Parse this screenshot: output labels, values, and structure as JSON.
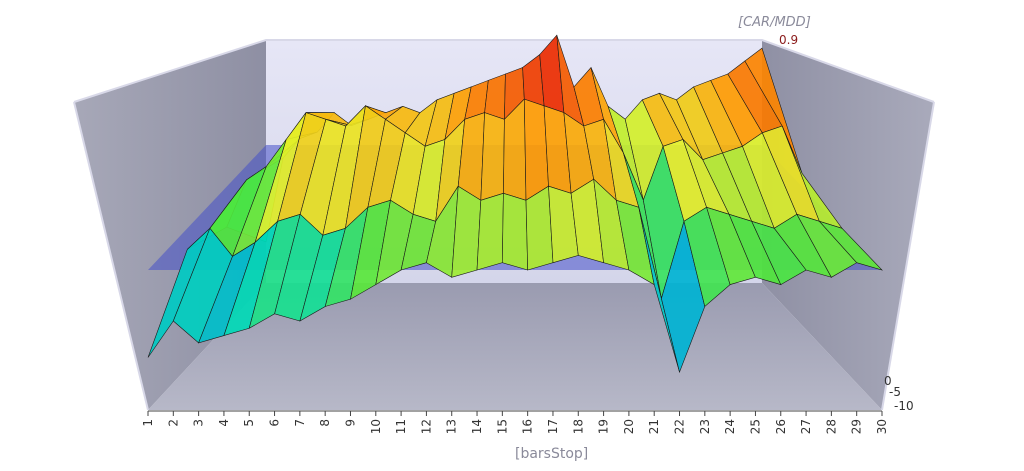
{
  "chart_data": {
    "type": "surface3d",
    "title": "",
    "xlabel": "[barsStop]",
    "zlabel": "[CAR/MDD]",
    "z_tick_visible": "0.9",
    "y_ticks_visible": [
      "0",
      "-5",
      "-10"
    ],
    "x": [
      1,
      2,
      3,
      4,
      5,
      6,
      7,
      8,
      9,
      10,
      11,
      12,
      13,
      14,
      15,
      16,
      17,
      18,
      19,
      20,
      21,
      22,
      23,
      24,
      25,
      26,
      27,
      28,
      29,
      30
    ],
    "x_tick_labels": [
      "1",
      "2",
      "3",
      "4",
      "5",
      "6",
      "7",
      "8",
      "9",
      "10",
      "11",
      "12",
      "13",
      "14",
      "15",
      "16",
      "17",
      "18",
      "19",
      "20",
      "21",
      "22",
      "23",
      "24",
      "25",
      "26",
      "27",
      "28",
      "29",
      "30"
    ],
    "y_rows": 4,
    "z_min": -0.9,
    "z_max": 0.9,
    "reference_plane_z": 0.0,
    "surface_rows": [
      [
        -0.75,
        -0.1,
        0.05,
        0.1,
        0.25,
        0.15,
        0.2,
        0.25,
        0.3,
        0.25,
        0.35,
        0.4,
        0.45,
        0.5,
        0.55,
        0.6,
        0.7,
        0.85,
        0.45,
        0.6,
        0.3,
        0.2,
        0.35,
        0.4,
        0.35,
        0.45,
        0.5,
        0.55,
        0.65,
        0.75
      ],
      [
        -0.3,
        0.05,
        0.15,
        0.35,
        0.55,
        0.5,
        0.45,
        0.6,
        0.5,
        0.4,
        0.3,
        0.35,
        0.5,
        0.55,
        0.5,
        0.65,
        0.6,
        0.55,
        0.45,
        0.5,
        0.25,
        -0.1,
        0.3,
        0.35,
        0.2,
        0.25,
        0.3,
        0.4,
        0.45,
        0.1
      ],
      [
        -0.15,
        0.0,
        -0.2,
        -0.1,
        0.05,
        0.1,
        -0.05,
        0.0,
        0.15,
        0.2,
        0.1,
        0.05,
        0.3,
        0.2,
        0.25,
        0.2,
        0.3,
        0.25,
        0.35,
        0.2,
        0.15,
        -0.5,
        0.05,
        0.15,
        0.1,
        0.05,
        0.0,
        0.1,
        0.05,
        0.0
      ],
      [
        -0.6,
        -0.35,
        -0.5,
        -0.45,
        -0.4,
        -0.3,
        -0.35,
        -0.25,
        -0.2,
        -0.1,
        0.0,
        0.05,
        -0.05,
        0.0,
        0.05,
        0.0,
        0.05,
        0.1,
        0.05,
        0.0,
        -0.1,
        -0.7,
        -0.25,
        -0.1,
        -0.05,
        -0.1,
        0.0,
        -0.05,
        0.05,
        0.0
      ]
    ]
  }
}
